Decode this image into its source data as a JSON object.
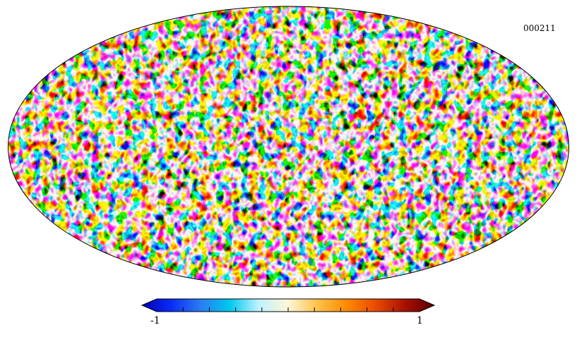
{
  "map": {
    "id_label": "000211",
    "projection": "mollweide",
    "pattern": "random-fluctuation-field"
  },
  "colorbar": {
    "min_label": "-1",
    "max_label": "1",
    "min": -1,
    "max": 1,
    "colors": [
      "#0000b8",
      "#0a2cf5",
      "#2a7cf2",
      "#00c8ee",
      "#bff3ff",
      "#fff6d8",
      "#ffc24a",
      "#ff8a00",
      "#e84a00",
      "#a81000",
      "#5a0000"
    ],
    "ticks": [
      -0.8,
      -0.6,
      -0.4,
      -0.2,
      0,
      0.2,
      0.4,
      0.6,
      0.8
    ]
  },
  "colors": {
    "outline": "#000000",
    "background": "#ffffff"
  }
}
